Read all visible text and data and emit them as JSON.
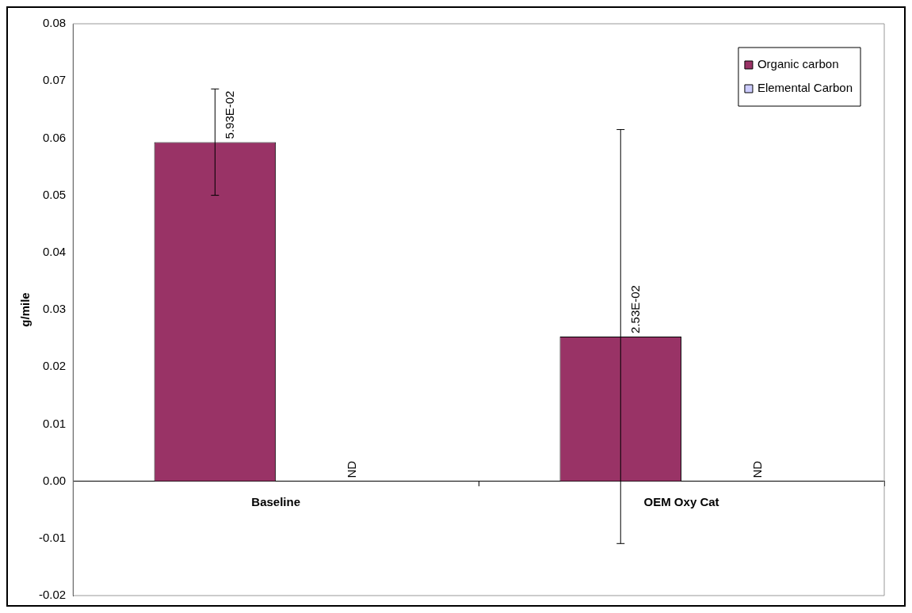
{
  "chart_data": {
    "type": "bar",
    "ylabel": "g/mile",
    "categories": [
      "Baseline",
      "OEM Oxy Cat"
    ],
    "series": [
      {
        "name": "Organic carbon",
        "color": "#993366",
        "values": [
          0.0593,
          0.0253
        ],
        "errors": [
          [
            0.05,
            0.0686
          ],
          [
            -0.0109,
            0.0615
          ]
        ],
        "value_labels": [
          "5.93E-02",
          "2.53E-02"
        ]
      },
      {
        "name": "Elemental Carbon",
        "color": "#ccccff",
        "values": [
          null,
          null
        ],
        "value_labels": [
          "ND",
          "ND"
        ]
      }
    ],
    "ylim": [
      -0.02,
      0.08
    ],
    "yticks": [
      {
        "value": -0.02,
        "label": "-0.02"
      },
      {
        "value": -0.01,
        "label": "-0.01"
      },
      {
        "value": 0,
        "label": "0.00"
      },
      {
        "value": 0.01,
        "label": "0.01"
      },
      {
        "value": 0.02,
        "label": "0.02"
      },
      {
        "value": 0.03,
        "label": "0.03"
      },
      {
        "value": 0.04,
        "label": "0.04"
      },
      {
        "value": 0.05,
        "label": "0.05"
      },
      {
        "value": 0.06,
        "label": "0.06"
      },
      {
        "value": 0.07,
        "label": "0.07"
      },
      {
        "value": 0.08,
        "label": "0.08"
      }
    ],
    "grid": false,
    "legend": "top right"
  }
}
